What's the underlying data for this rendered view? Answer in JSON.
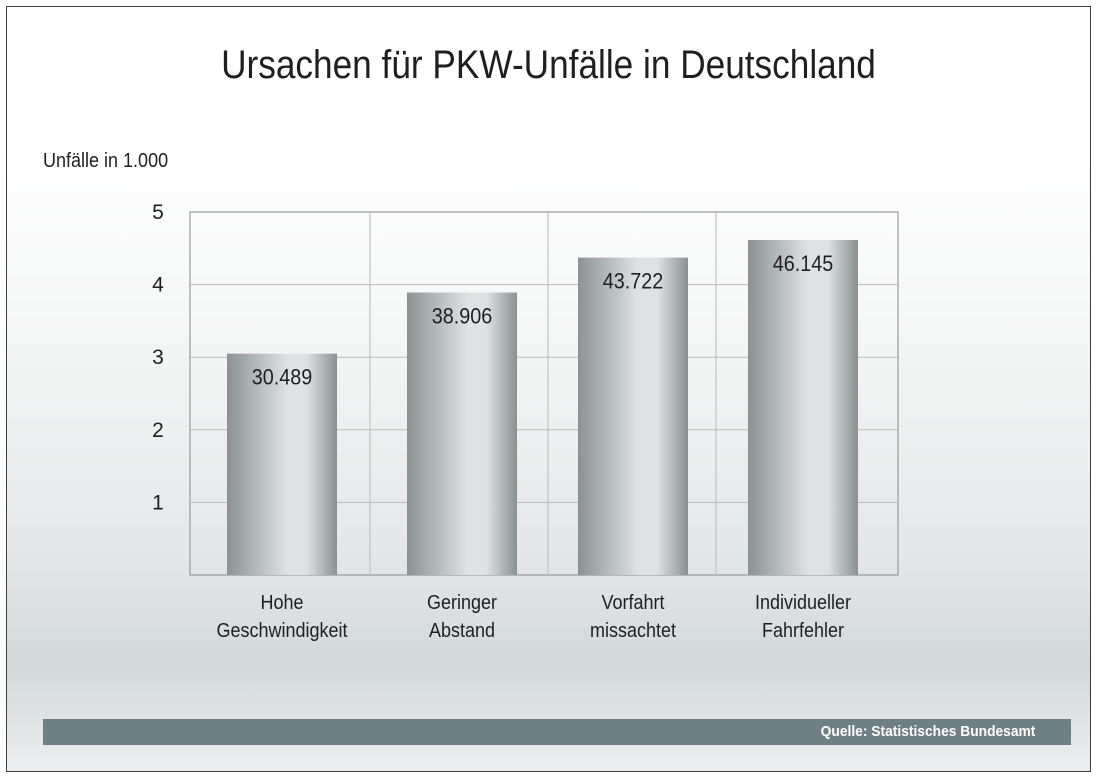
{
  "chart_data": {
    "type": "bar",
    "title": "Ursachen für PKW-Unfälle in Deutschland",
    "ylabel": "Unfälle in 1.000",
    "xlabel": "",
    "ylim": [
      0,
      5
    ],
    "yticks": [
      1,
      2,
      3,
      4,
      5
    ],
    "grid": true,
    "categories": [
      [
        "Hohe",
        "Geschwindigkeit"
      ],
      [
        "Geringer",
        "Abstand"
      ],
      [
        "Vorfahrt",
        "missachtet"
      ],
      [
        "Individueller",
        "Fahrfehler"
      ]
    ],
    "values": [
      30.489,
      38.906,
      43.722,
      46.145
    ],
    "value_labels": [
      "30.489",
      "38.906",
      "43.722",
      "46.145"
    ],
    "value_unit_divisor": 10
  },
  "source": "Quelle: Statistisches Bundesamt",
  "colors": {
    "bar_dark": "#8c9294",
    "bar_light": "#dfe2e3",
    "grid": "#b9b9b9",
    "axis": "#9a9a9a",
    "source_bar": "#6f7f86"
  }
}
